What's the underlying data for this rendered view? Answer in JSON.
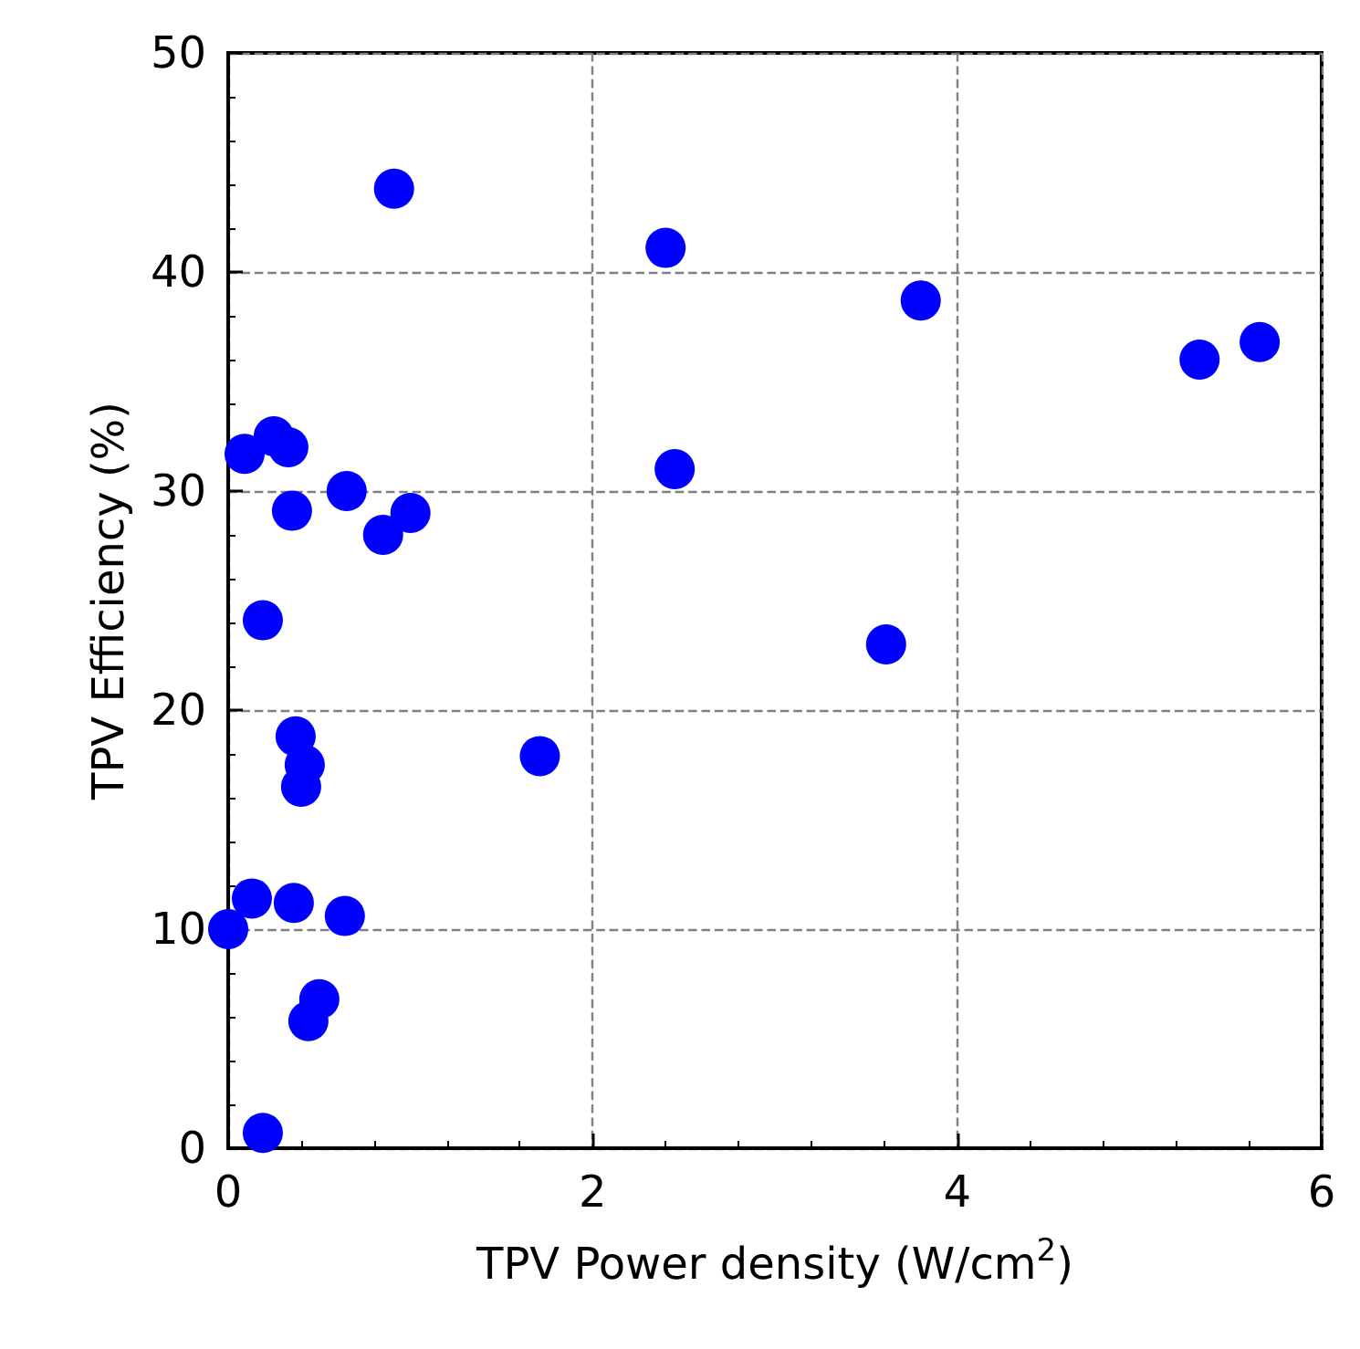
{
  "chart_data": {
    "type": "scatter",
    "xlabel": "TPV Power density (W/cm$^{2}$)",
    "ylabel": "TPV Efficiency (%)",
    "x": [
      0.09,
      0.25,
      0.33,
      0.35,
      0.65,
      0.85,
      1.0,
      0.19,
      0.37,
      0.42,
      0.4,
      0.13,
      0.36,
      0.64,
      0.0,
      0.5,
      0.44,
      0.19,
      0.91,
      1.71,
      2.4,
      2.45,
      3.61,
      3.8,
      5.33,
      5.66
    ],
    "series": [
      {
        "color": "#0000ff",
        "values": [
          31.7,
          32.5,
          32.0,
          29.1,
          30.0,
          28.0,
          29.0,
          24.1,
          18.8,
          17.5,
          16.5,
          11.4,
          11.2,
          10.6,
          10.0,
          6.8,
          5.8,
          0.7,
          43.8,
          17.9,
          41.1,
          31.0,
          23.0,
          38.7,
          36.0,
          36.8
        ]
      }
    ],
    "xlim": [
      0,
      6
    ],
    "xticks": [
      0,
      2,
      4,
      6
    ],
    "ylim": [
      0,
      50
    ],
    "yticks": [
      0,
      10,
      20,
      30,
      40,
      50
    ],
    "grid": true,
    "marker": "circle"
  }
}
